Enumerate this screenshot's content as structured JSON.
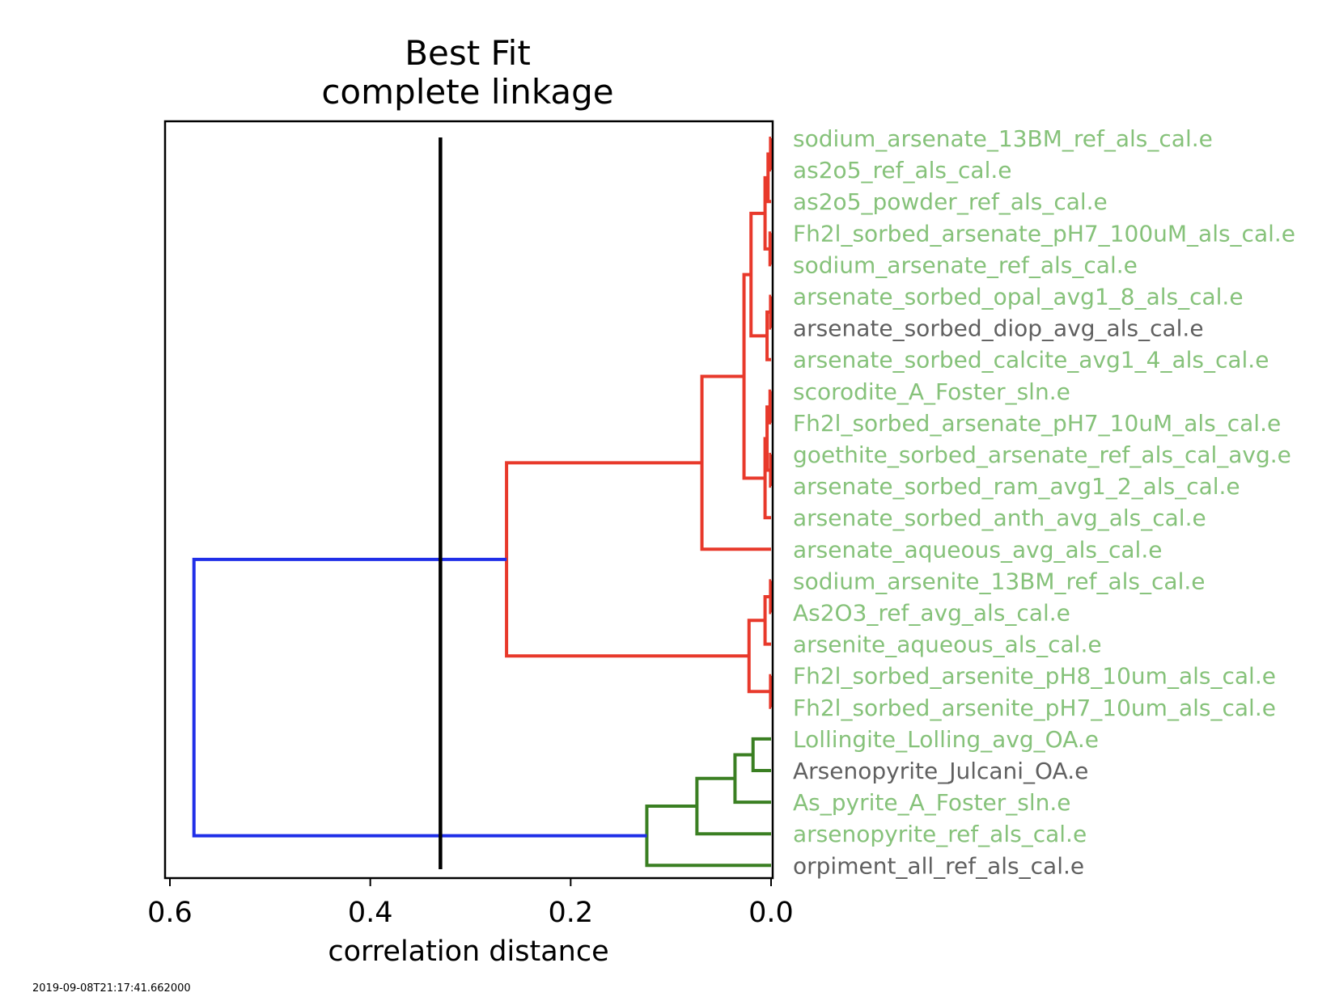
{
  "chart_data": {
    "type": "dendrogram",
    "title": [
      "Best Fit",
      "complete linkage"
    ],
    "xlabel": "correlation distance",
    "orientation": "left",
    "xlim": [
      0.6,
      0.0
    ],
    "xticks": [
      {
        "value": 0.6,
        "label": "0.6"
      },
      {
        "value": 0.4,
        "label": "0.4"
      },
      {
        "value": 0.2,
        "label": "0.2"
      },
      {
        "value": 0.0,
        "label": "0.0"
      }
    ],
    "threshold": 0.33,
    "colors": {
      "red_cluster": "#e8392b",
      "green_cluster": "#3a7f22",
      "root": "#1f2ee8",
      "threshold": "#000000",
      "leaf_selected": "#86c27a",
      "leaf_unselected": "#606060"
    },
    "leaves": [
      {
        "label": "sodium_arsenate_13BM_ref_als_cal.e",
        "selected": true
      },
      {
        "label": "as2o5_ref_als_cal.e",
        "selected": true
      },
      {
        "label": "as2o5_powder_ref_als_cal.e",
        "selected": true
      },
      {
        "label": "Fh2l_sorbed_arsenate_pH7_100uM_als_cal.e",
        "selected": true
      },
      {
        "label": "sodium_arsenate_ref_als_cal.e",
        "selected": true
      },
      {
        "label": "arsenate_sorbed_opal_avg1_8_als_cal.e",
        "selected": true
      },
      {
        "label": "arsenate_sorbed_diop_avg_als_cal.e",
        "selected": false
      },
      {
        "label": "arsenate_sorbed_calcite_avg1_4_als_cal.e",
        "selected": true
      },
      {
        "label": "scorodite_A_Foster_sln.e",
        "selected": true
      },
      {
        "label": "Fh2l_sorbed_arsenate_pH7_10uM_als_cal.e",
        "selected": true
      },
      {
        "label": "goethite_sorbed_arsenate_ref_als_cal_avg.e",
        "selected": true
      },
      {
        "label": "arsenate_sorbed_ram_avg1_2_als_cal.e",
        "selected": true
      },
      {
        "label": "arsenate_sorbed_anth_avg_als_cal.e",
        "selected": true
      },
      {
        "label": "arsenate_aqueous_avg_als_cal.e",
        "selected": true
      },
      {
        "label": "sodium_arsenite_13BM_ref_als_cal.e",
        "selected": true
      },
      {
        "label": "As2O3_ref_avg_als_cal.e",
        "selected": true
      },
      {
        "label": "arsenite_aqueous_als_cal.e",
        "selected": true
      },
      {
        "label": "Fh2l_sorbed_arsenite_pH8_10um_als_cal.e",
        "selected": true
      },
      {
        "label": "Fh2l_sorbed_arsenite_pH7_10um_als_cal.e",
        "selected": true
      },
      {
        "label": "Lollingite_Lolling_avg_OA.e",
        "selected": true
      },
      {
        "label": "Arsenopyrite_Julcani_OA.e",
        "selected": false
      },
      {
        "label": "As_pyrite_A_Foster_sln.e",
        "selected": true
      },
      {
        "label": "arsenopyrite_ref_als_cal.e",
        "selected": true
      },
      {
        "label": "orpiment_all_ref_als_cal.e",
        "selected": false
      }
    ],
    "merges": [
      {
        "id": "n1",
        "a": 0,
        "b": 1,
        "height": 0.0005,
        "color": "red_cluster"
      },
      {
        "id": "n2",
        "a": "n1",
        "b": 2,
        "height": 0.003,
        "color": "red_cluster"
      },
      {
        "id": "n3",
        "a": 3,
        "b": 4,
        "height": 0.001,
        "color": "red_cluster"
      },
      {
        "id": "n4",
        "a": "n2",
        "b": "n3",
        "height": 0.006,
        "color": "red_cluster"
      },
      {
        "id": "n5",
        "a": 5,
        "b": 6,
        "height": 0.0005,
        "color": "red_cluster"
      },
      {
        "id": "n6",
        "a": "n5",
        "b": 7,
        "height": 0.004,
        "color": "red_cluster"
      },
      {
        "id": "n7",
        "a": "n4",
        "b": "n6",
        "height": 0.02,
        "color": "red_cluster"
      },
      {
        "id": "n8",
        "a": 8,
        "b": 9,
        "height": 0.001,
        "color": "red_cluster"
      },
      {
        "id": "n9",
        "a": 10,
        "b": 11,
        "height": 0.0005,
        "color": "red_cluster"
      },
      {
        "id": "n10",
        "a": "n8",
        "b": "n9",
        "height": 0.004,
        "color": "red_cluster"
      },
      {
        "id": "n11",
        "a": "n10",
        "b": 12,
        "height": 0.006,
        "color": "red_cluster"
      },
      {
        "id": "n12",
        "a": "n7",
        "b": "n11",
        "height": 0.027,
        "color": "red_cluster"
      },
      {
        "id": "n13",
        "a": "n12",
        "b": 13,
        "height": 0.069,
        "color": "red_cluster"
      },
      {
        "id": "n14",
        "a": 14,
        "b": 15,
        "height": 0.0005,
        "color": "red_cluster"
      },
      {
        "id": "n15",
        "a": "n14",
        "b": 16,
        "height": 0.006,
        "color": "red_cluster"
      },
      {
        "id": "n16",
        "a": 17,
        "b": 18,
        "height": 0.0005,
        "color": "red_cluster"
      },
      {
        "id": "n17",
        "a": "n15",
        "b": "n16",
        "height": 0.022,
        "color": "red_cluster"
      },
      {
        "id": "n18",
        "a": "n13",
        "b": "n17",
        "height": 0.264,
        "color": "red_cluster"
      },
      {
        "id": "n19",
        "a": 19,
        "b": 20,
        "height": 0.018,
        "color": "green_cluster"
      },
      {
        "id": "n20",
        "a": "n19",
        "b": 21,
        "height": 0.036,
        "color": "green_cluster"
      },
      {
        "id": "n21",
        "a": "n20",
        "b": 22,
        "height": 0.074,
        "color": "green_cluster"
      },
      {
        "id": "n22",
        "a": "n21",
        "b": 23,
        "height": 0.124,
        "color": "green_cluster"
      },
      {
        "id": "n23",
        "a": "n18",
        "b": "n22",
        "height": 0.576,
        "color": "root"
      }
    ]
  },
  "footer": {
    "timestamp": "2019-09-08T21:17:41.662000"
  }
}
